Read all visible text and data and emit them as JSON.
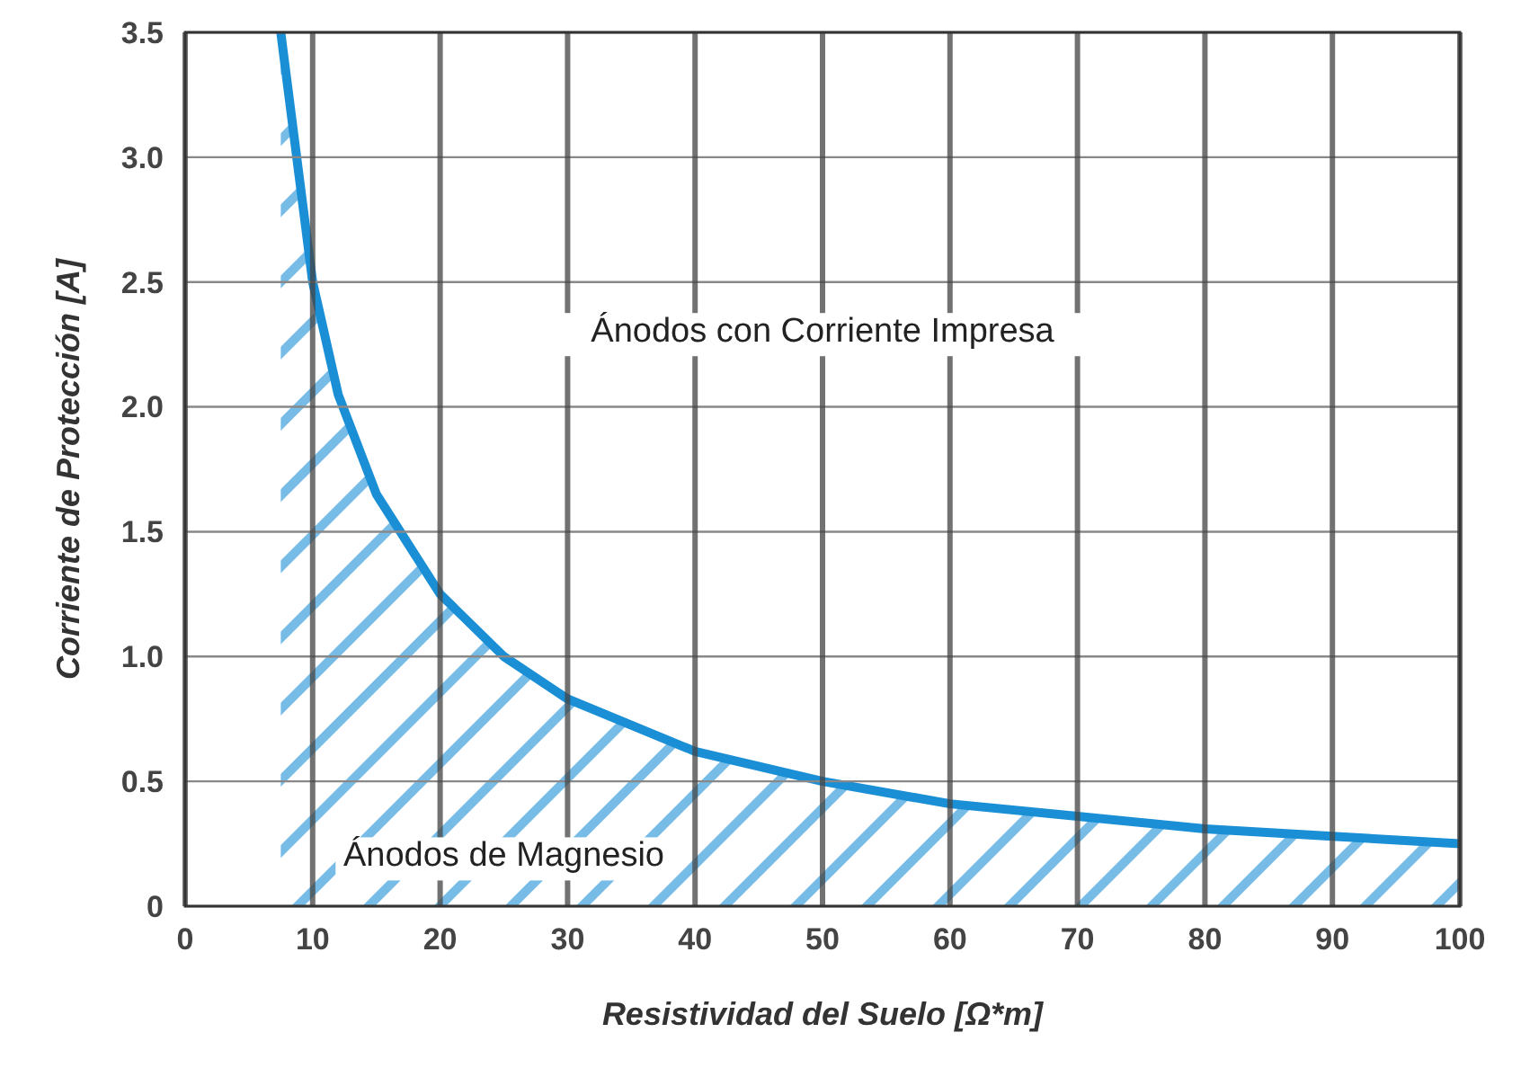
{
  "chart_data": {
    "type": "area",
    "xlabel": "Resistividad del Suelo [Ω*m]",
    "ylabel": "Corriente de Protección [A]",
    "x": [
      7.5,
      10,
      12,
      15,
      20,
      25,
      30,
      40,
      50,
      60,
      70,
      80,
      90,
      100
    ],
    "series": [
      {
        "color": "#1a8fd6",
        "values": [
          3.5,
          2.5,
          2.05,
          1.65,
          1.25,
          1.0,
          0.83,
          0.62,
          0.5,
          0.41,
          0.36,
          0.31,
          0.28,
          0.25
        ]
      }
    ],
    "xlim": [
      0,
      100
    ],
    "xticks": [
      0,
      10,
      20,
      30,
      40,
      50,
      60,
      70,
      80,
      90,
      100
    ],
    "ylim": [
      0,
      3.5
    ],
    "yticks": [
      0,
      0.5,
      {
        "value": 1,
        "label": "1.0"
      },
      1.5,
      {
        "value": 2,
        "label": "2.0"
      },
      2.5,
      {
        "value": 3,
        "label": "3.0"
      },
      3.5
    ],
    "grid": true,
    "annotations": [
      "Ánodos con Corriente Impresa",
      "Ánodos de Magnesio"
    ]
  }
}
